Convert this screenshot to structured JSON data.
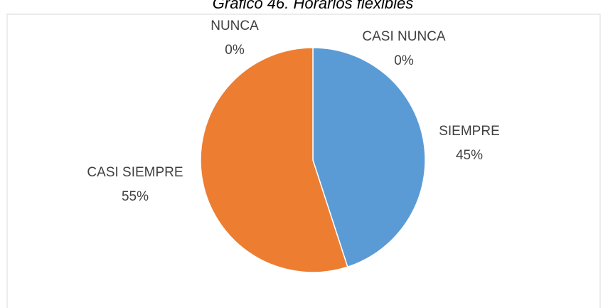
{
  "chart_data": {
    "type": "pie",
    "title": "Gráfico 46. Horarios flexibles",
    "categories": [
      "SIEMPRE",
      "CASI SIEMPRE",
      "NUNCA",
      "CASI NUNCA"
    ],
    "values": [
      45,
      55,
      0,
      0
    ],
    "value_labels": [
      "45%",
      "55%",
      "0%",
      "0%"
    ],
    "colors": [
      "#5b9bd5",
      "#ed7d31",
      "#a5a5a5",
      "#ffc000"
    ]
  }
}
